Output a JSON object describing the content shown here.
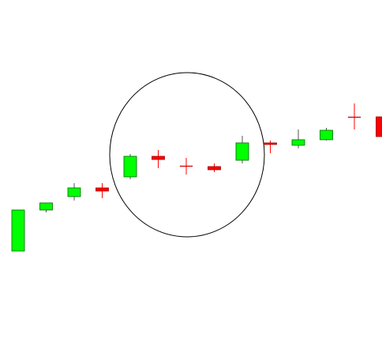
{
  "chart_data": {
    "type": "candlestick",
    "open": [
      119,
      171,
      188,
      199,
      213,
      239,
      227,
      226,
      234,
      256,
      253,
      260,
      289,
      289
    ],
    "high": [
      171,
      180,
      205,
      205,
      242,
      247,
      237,
      230,
      265,
      259,
      273,
      275,
      306,
      289
    ],
    "low": [
      119,
      168,
      183,
      186,
      210,
      224,
      216,
      219,
      230,
      243,
      249,
      259,
      273,
      264
    ],
    "close": [
      171,
      180,
      199,
      195,
      239,
      235,
      227,
      222,
      256,
      254,
      260,
      272,
      289,
      264
    ],
    "up_color": "#00ff00",
    "down_color": "#ff0000",
    "ylim": [
      0,
      437
    ]
  }
}
